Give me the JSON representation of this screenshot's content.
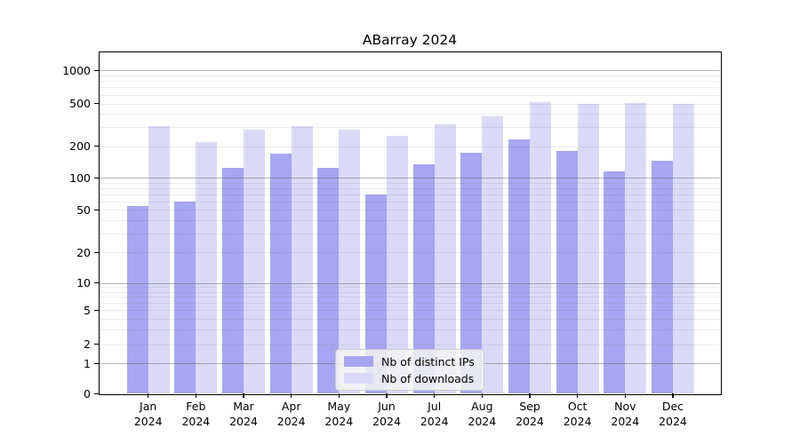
{
  "title": "ABarray 2024",
  "chart_data": {
    "type": "bar",
    "title": "ABarray 2024",
    "categories": [
      "Jan 2024",
      "Feb 2024",
      "Mar 2024",
      "Apr 2024",
      "May 2024",
      "Jun 2024",
      "Jul 2024",
      "Aug 2024",
      "Sep 2024",
      "Oct 2024",
      "Nov 2024",
      "Dec 2024"
    ],
    "series": [
      {
        "name": "Nb of distinct IPs",
        "color": "#a6a6f2",
        "values": [
          54,
          60,
          125,
          170,
          125,
          70,
          135,
          175,
          230,
          180,
          115,
          145
        ]
      },
      {
        "name": "Nb of downloads",
        "color": "#dadaf8",
        "values": [
          310,
          220,
          285,
          310,
          285,
          250,
          320,
          380,
          520,
          500,
          510,
          495
        ]
      }
    ],
    "xlabel": "",
    "ylabel": "",
    "yscale": "symlog",
    "yticks": [
      0,
      1,
      2,
      5,
      10,
      20,
      50,
      100,
      200,
      500,
      1000
    ],
    "ytick_labels": [
      "0",
      "1",
      "2",
      "5",
      "10",
      "20",
      "50",
      "100",
      "200",
      "500",
      "1000"
    ],
    "ylim": [
      0,
      1500
    ],
    "grid": true,
    "legend": {
      "position": "lower center",
      "entries": [
        "Nb of distinct IPs",
        "Nb of downloads"
      ]
    }
  }
}
